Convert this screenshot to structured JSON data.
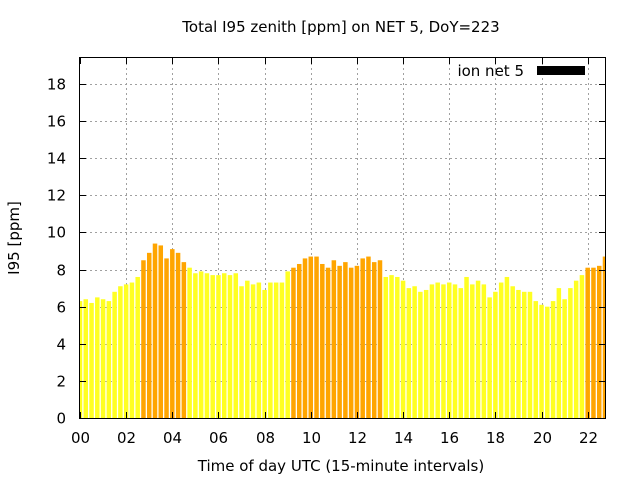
{
  "chart_data": {
    "type": "bar",
    "title": "Total I95 zenith [ppm] on NET 5, DoY=223",
    "xlabel": "Time of day UTC (15-minute intervals)",
    "ylabel": "I95 [ppm]",
    "ylim": [
      0,
      19.4
    ],
    "yticks": [
      0,
      2,
      4,
      6,
      8,
      10,
      12,
      14,
      16,
      18
    ],
    "xlim": [
      0,
      22.75
    ],
    "xticks": [
      0,
      2,
      4,
      6,
      8,
      10,
      12,
      14,
      16,
      18,
      20,
      22
    ],
    "xtick_labels": [
      "00",
      "02",
      "04",
      "06",
      "08",
      "10",
      "12",
      "14",
      "16",
      "18",
      "20",
      "22"
    ],
    "grid": true,
    "legend": {
      "label": "ion net 5",
      "color": "#000000",
      "position": "top-right"
    },
    "colors": {
      "low": "#ffff22",
      "high": "#ffa500"
    },
    "x_step_hours": 0.25,
    "values": [
      6.3,
      6.4,
      6.2,
      6.5,
      6.4,
      6.3,
      6.8,
      7.1,
      7.2,
      7.3,
      7.6,
      8.5,
      8.9,
      9.4,
      9.3,
      8.6,
      9.1,
      8.9,
      8.4,
      8.1,
      7.8,
      7.9,
      7.8,
      7.7,
      7.7,
      7.8,
      7.7,
      7.8,
      7.1,
      7.4,
      7.2,
      7.3,
      6.9,
      7.3,
      7.3,
      7.3,
      7.9,
      8.1,
      8.3,
      8.6,
      8.7,
      8.7,
      8.3,
      8.1,
      8.5,
      8.2,
      8.4,
      8.1,
      8.2,
      8.6,
      8.7,
      8.4,
      8.5,
      7.6,
      7.7,
      7.6,
      7.4,
      7.0,
      7.1,
      6.8,
      6.9,
      7.2,
      7.3,
      7.2,
      7.3,
      7.2,
      7.0,
      7.6,
      7.2,
      7.4,
      7.2,
      6.5,
      6.8,
      7.3,
      7.6,
      7.1,
      6.9,
      6.8,
      6.8,
      6.3,
      6.1,
      6.0,
      6.3,
      7.0,
      6.4,
      7.0,
      7.4,
      7.7,
      8.1,
      8.1,
      8.2,
      8.7
    ],
    "highlight": [
      0,
      0,
      0,
      0,
      0,
      0,
      0,
      0,
      0,
      0,
      0,
      1,
      1,
      1,
      1,
      1,
      1,
      1,
      1,
      0,
      0,
      0,
      0,
      0,
      0,
      0,
      0,
      0,
      0,
      0,
      0,
      0,
      0,
      0,
      0,
      0,
      0,
      1,
      1,
      1,
      1,
      1,
      1,
      1,
      1,
      1,
      1,
      1,
      1,
      1,
      1,
      1,
      1,
      0,
      0,
      0,
      0,
      0,
      0,
      0,
      0,
      0,
      0,
      0,
      0,
      0,
      0,
      0,
      0,
      0,
      0,
      0,
      0,
      0,
      0,
      0,
      0,
      0,
      0,
      0,
      0,
      0,
      0,
      0,
      0,
      0,
      0,
      0,
      1,
      1,
      1,
      1
    ]
  }
}
